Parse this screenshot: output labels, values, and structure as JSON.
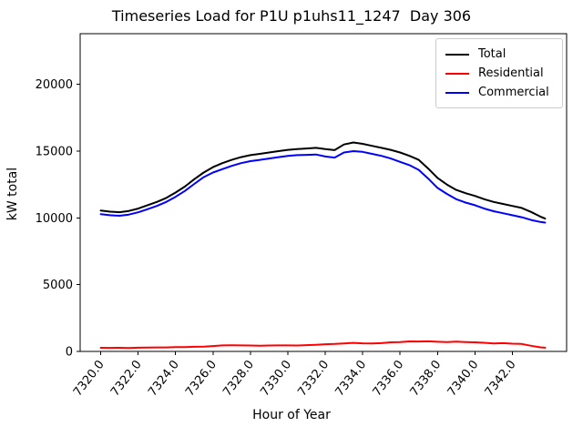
{
  "chart_data": {
    "type": "line",
    "title": "Timeseries Load for P1U p1uhs11_1247  Day 306",
    "xlabel": "Hour of Year",
    "ylabel": "kW total",
    "grid": false,
    "legend_position": "upper right",
    "xlim": [
      7318.9,
      7344.9
    ],
    "ylim": [
      0,
      23800
    ],
    "xticks": [
      7320,
      7322,
      7324,
      7326,
      7328,
      7330,
      7332,
      7334,
      7336,
      7338,
      7340,
      7342
    ],
    "xtick_labels": [
      "7320.0",
      "7322.0",
      "7324.0",
      "7326.0",
      "7328.0",
      "7330.0",
      "7332.0",
      "7334.0",
      "7336.0",
      "7338.0",
      "7340.0",
      "7342.0"
    ],
    "yticks": [
      0,
      5000,
      10000,
      15000,
      20000
    ],
    "ytick_labels": [
      "0",
      "5000",
      "10000",
      "15000",
      "20000"
    ],
    "x": [
      7320.0,
      7320.5,
      7321.0,
      7321.5,
      7322.0,
      7322.5,
      7323.0,
      7323.5,
      7324.0,
      7324.5,
      7325.0,
      7325.5,
      7326.0,
      7326.5,
      7327.0,
      7327.5,
      7328.0,
      7328.5,
      7329.0,
      7329.5,
      7330.0,
      7330.5,
      7331.0,
      7331.5,
      7332.0,
      7332.5,
      7333.0,
      7333.5,
      7334.0,
      7334.5,
      7335.0,
      7335.5,
      7336.0,
      7336.5,
      7337.0,
      7337.5,
      7338.0,
      7338.5,
      7339.0,
      7339.5,
      7340.0,
      7340.5,
      7341.0,
      7341.5,
      7342.0,
      7342.5,
      7343.0,
      7343.5,
      7343.75
    ],
    "series": [
      {
        "name": "Total",
        "color": "#000000",
        "values": [
          10550,
          10470,
          10430,
          10520,
          10700,
          10950,
          11200,
          11500,
          11900,
          12350,
          12900,
          13400,
          13800,
          14100,
          14350,
          14550,
          14700,
          14800,
          14900,
          15000,
          15100,
          15150,
          15200,
          15250,
          15150,
          15080,
          15500,
          15650,
          15550,
          15400,
          15250,
          15100,
          14900,
          14650,
          14350,
          13700,
          13000,
          12500,
          12100,
          11850,
          11650,
          11400,
          11200,
          11050,
          10900,
          10750,
          10450,
          10100,
          9950
        ]
      },
      {
        "name": "Residential",
        "color": "#ff0000",
        "values": [
          270,
          265,
          270,
          260,
          280,
          295,
          300,
          300,
          320,
          330,
          350,
          360,
          400,
          450,
          460,
          450,
          440,
          430,
          440,
          450,
          450,
          440,
          470,
          500,
          540,
          560,
          600,
          640,
          610,
          590,
          620,
          680,
          700,
          750,
          740,
          760,
          720,
          700,
          730,
          700,
          680,
          650,
          600,
          620,
          580,
          560,
          420,
          310,
          280
        ]
      },
      {
        "name": "Commercial",
        "color": "#0000ff",
        "values": [
          10280,
          10200,
          10160,
          10250,
          10420,
          10650,
          10900,
          11200,
          11580,
          12020,
          12550,
          13050,
          13400,
          13650,
          13900,
          14100,
          14250,
          14350,
          14450,
          14550,
          14650,
          14700,
          14720,
          14750,
          14600,
          14520,
          14900,
          15000,
          14950,
          14800,
          14650,
          14450,
          14200,
          13950,
          13600,
          12950,
          12250,
          11800,
          11400,
          11150,
          10950,
          10700,
          10500,
          10350,
          10200,
          10050,
          9850,
          9700,
          9650
        ]
      }
    ]
  }
}
